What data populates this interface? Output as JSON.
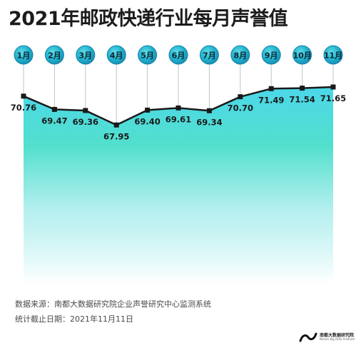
{
  "title": "2021年邮政快递行业每月声誉值",
  "chart_data": {
    "type": "line",
    "categories": [
      "1月",
      "2月",
      "3月",
      "4月",
      "5月",
      "6月",
      "7月",
      "8月",
      "9月",
      "10月",
      "11月"
    ],
    "values": [
      70.76,
      69.47,
      69.36,
      67.95,
      69.4,
      69.61,
      69.34,
      70.7,
      71.49,
      71.54,
      71.65
    ],
    "value_labels": [
      "70.76",
      "69.47",
      "69.36",
      "67.95",
      "69.40",
      "69.61",
      "69.34",
      "70.70",
      "71.49",
      "71.54",
      "71.65"
    ],
    "title": "2021年邮政快递行业每月声誉值",
    "xlabel": "",
    "ylabel": "",
    "grid": false,
    "colors": {
      "line": "#1a1a1a",
      "badge": "#1fa9c8",
      "fill_top": "#48d6ea",
      "fill_bottom": "#ffffff"
    }
  },
  "footer": {
    "source": "数据来源：南都大数据研究院企业声誉研究中心监测系统",
    "cutoff": "统计截止日期：2021年11月11日"
  },
  "logo": {
    "name": "南都大数据研究院",
    "name_en": "Nandu Big Data Institute"
  }
}
